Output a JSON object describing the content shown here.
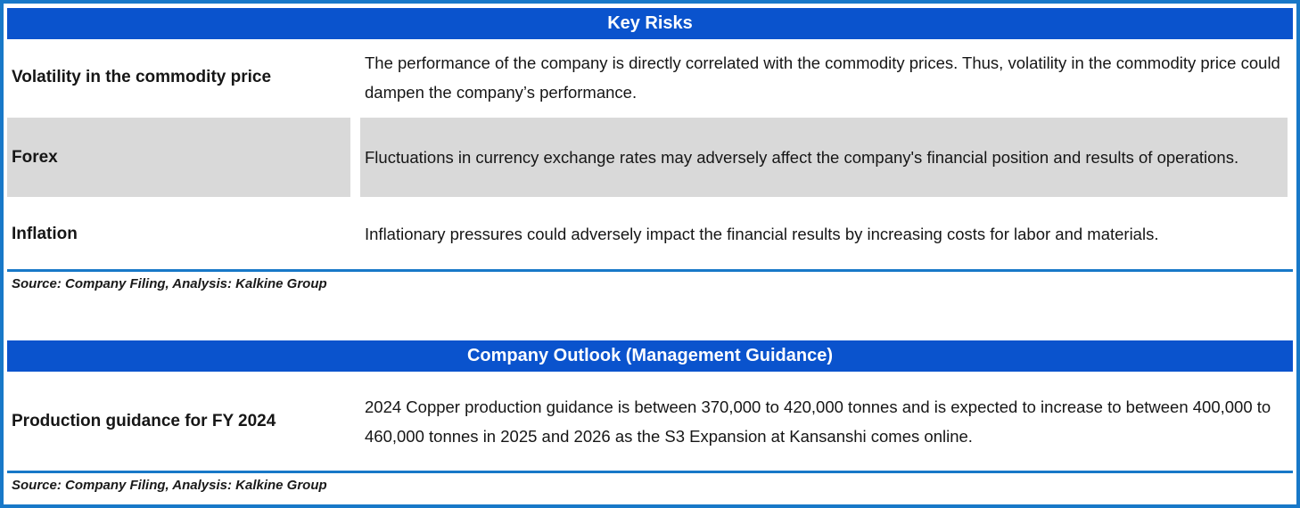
{
  "theme": {
    "header_blue": "#0a53cd",
    "border_blue": "#1878c8",
    "highlight_gray": "#d9d9d9",
    "header_text_color": "#ffffff"
  },
  "tables": [
    {
      "title": "Key Risks",
      "rows": [
        {
          "label": "Volatility in the commodity price",
          "description": "The performance of the company is directly correlated with the commodity prices. Thus, volatility in the commodity price could dampen the company’s performance.",
          "highlighted": false
        },
        {
          "label": "Forex",
          "description": "Fluctuations in currency exchange rates may adversely affect the company's financial position and results of operations.",
          "highlighted": true
        },
        {
          "label": "Inflation",
          "description": "Inflationary pressures could adversely impact the financial results by increasing costs for labor and materials.",
          "highlighted": false
        }
      ],
      "source": "Source: Company Filing, Analysis: Kalkine Group"
    },
    {
      "title": "Company Outlook (Management Guidance)",
      "rows": [
        {
          "label": "Production guidance for FY 2024",
          "description": "2024 Copper production guidance is between 370,000 to 420,000 tonnes and is expected to increase to between 400,000 to 460,000 tonnes in 2025 and 2026 as the S3 Expansion at Kansanshi comes online.",
          "highlighted": false
        }
      ],
      "source": "Source: Company Filing, Analysis: Kalkine Group"
    }
  ]
}
